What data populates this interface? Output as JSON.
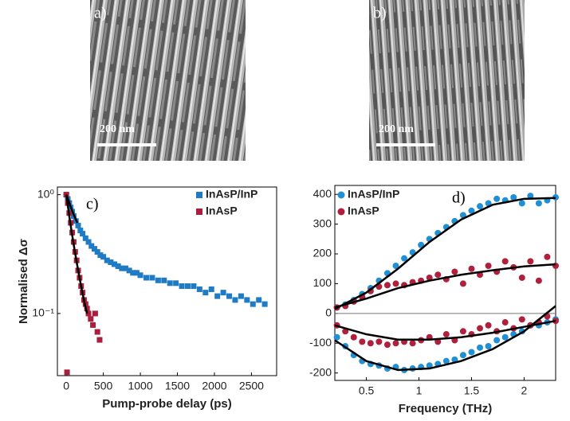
{
  "images": [
    {
      "label": "a)",
      "scale": "200 nm"
    },
    {
      "label": "b)",
      "scale": "200 nm"
    }
  ],
  "chart_data": [
    {
      "type": "scatter",
      "annotation": "c)",
      "xlabel": "Pump-probe delay (ps)",
      "ylabel": "Normalised Δσ",
      "xlim": [
        -120,
        2840
      ],
      "xticks": [
        0,
        500,
        1000,
        1500,
        2000,
        2500
      ],
      "ylim": [
        0.03,
        1.16
      ],
      "ylog": true,
      "yticks": [
        {
          "value": 1,
          "label": "10⁰"
        },
        {
          "value": 0.1,
          "label": "10⁻¹"
        }
      ],
      "legend": "upper right",
      "series": [
        {
          "name": "InAsP/InP",
          "color": "#1f7bc4",
          "marker": "square",
          "x": [
            0,
            20,
            40,
            60,
            80,
            100,
            130,
            160,
            190,
            220,
            260,
            300,
            340,
            380,
            420,
            460,
            500,
            550,
            600,
            650,
            700,
            750,
            800,
            850,
            900,
            950,
            1000,
            1080,
            1160,
            1240,
            1320,
            1400,
            1480,
            1560,
            1640,
            1720,
            1800,
            1880,
            1960,
            2040,
            2120,
            2200,
            2280,
            2360,
            2440,
            2520,
            2600,
            2680
          ],
          "values": [
            1.0,
            0.92,
            0.85,
            0.78,
            0.72,
            0.66,
            0.6,
            0.55,
            0.5,
            0.47,
            0.43,
            0.4,
            0.37,
            0.35,
            0.33,
            0.31,
            0.3,
            0.28,
            0.27,
            0.26,
            0.25,
            0.24,
            0.24,
            0.23,
            0.22,
            0.22,
            0.21,
            0.2,
            0.2,
            0.19,
            0.19,
            0.18,
            0.18,
            0.17,
            0.17,
            0.17,
            0.16,
            0.15,
            0.16,
            0.14,
            0.15,
            0.14,
            0.13,
            0.14,
            0.13,
            0.12,
            0.13,
            0.12
          ]
        },
        {
          "name": "InAsP",
          "color": "#a8203c",
          "marker": "square",
          "x": [
            0,
            20,
            40,
            60,
            80,
            100,
            120,
            140,
            160,
            180,
            200,
            220,
            240,
            260,
            280,
            300,
            330,
            360,
            390,
            420,
            450,
            10
          ],
          "values": [
            1.0,
            0.85,
            0.7,
            0.58,
            0.48,
            0.4,
            0.33,
            0.28,
            0.23,
            0.2,
            0.17,
            0.15,
            0.13,
            0.12,
            0.11,
            0.1,
            0.09,
            0.08,
            0.1,
            0.07,
            0.06,
            0.032
          ]
        },
        {
          "style": "line",
          "color": "#000000",
          "x": [
            0,
            50,
            100,
            150
          ],
          "values": [
            1,
            0.82,
            0.68,
            0.58
          ]
        },
        {
          "style": "line",
          "color": "#000000",
          "x": [
            0,
            50,
            100,
            150,
            200,
            250,
            280
          ],
          "values": [
            1,
            0.6,
            0.38,
            0.25,
            0.17,
            0.12,
            0.1
          ]
        }
      ]
    },
    {
      "type": "scatter",
      "annotation": "d)",
      "xlabel": "Frequency (THz)",
      "xlim": [
        0.2,
        2.3
      ],
      "xticks": [
        0.5,
        1,
        1.5,
        2
      ],
      "ylim": [
        -225,
        430
      ],
      "yticks": [
        -200,
        -100,
        0,
        100,
        200,
        300,
        400
      ],
      "zero_line": true,
      "legend": "upper left",
      "series": [
        {
          "name": "InAsP/InP",
          "color": "#1f8fd6",
          "marker": "circle",
          "x": [
            0.22,
            0.3,
            0.38,
            0.46,
            0.54,
            0.62,
            0.7,
            0.78,
            0.86,
            0.94,
            1.02,
            1.1,
            1.18,
            1.26,
            1.34,
            1.42,
            1.5,
            1.58,
            1.66,
            1.74,
            1.82,
            1.9,
            1.98,
            2.06,
            2.14,
            2.22,
            2.3
          ],
          "values": [
            20,
            30,
            45,
            65,
            85,
            110,
            135,
            160,
            185,
            205,
            230,
            250,
            270,
            290,
            310,
            330,
            345,
            360,
            370,
            385,
            380,
            390,
            370,
            395,
            370,
            380,
            390
          ]
        },
        {
          "name": "InAsP",
          "color": "#b0203c",
          "marker": "circle",
          "x": [
            0.22,
            0.3,
            0.38,
            0.46,
            0.54,
            0.62,
            0.7,
            0.78,
            0.86,
            0.94,
            1.02,
            1.1,
            1.18,
            1.26,
            1.34,
            1.42,
            1.5,
            1.58,
            1.66,
            1.74,
            1.82,
            1.9,
            1.98,
            2.06,
            2.14,
            2.22,
            2.3
          ],
          "values": [
            20,
            25,
            40,
            55,
            75,
            90,
            95,
            100,
            95,
            105,
            110,
            120,
            130,
            115,
            140,
            100,
            150,
            130,
            160,
            140,
            175,
            155,
            120,
            175,
            110,
            190,
            160
          ]
        },
        {
          "color": "#1f8fd6",
          "marker": "circle",
          "x": [
            0.22,
            0.3,
            0.38,
            0.46,
            0.54,
            0.62,
            0.7,
            0.78,
            0.86,
            0.94,
            1.02,
            1.1,
            1.18,
            1.26,
            1.34,
            1.42,
            1.5,
            1.58,
            1.66,
            1.74,
            1.82,
            1.9,
            1.98,
            2.06,
            2.14,
            2.22,
            2.3
          ],
          "values": [
            -80,
            -110,
            -140,
            -160,
            -170,
            -175,
            -185,
            -180,
            -190,
            -185,
            -180,
            -175,
            -170,
            -160,
            -155,
            -140,
            -130,
            -115,
            -110,
            -90,
            -80,
            -70,
            -60,
            -40,
            -40,
            -30,
            -20
          ]
        },
        {
          "color": "#b0203c",
          "marker": "circle",
          "x": [
            0.22,
            0.3,
            0.38,
            0.46,
            0.54,
            0.62,
            0.7,
            0.78,
            0.86,
            0.94,
            1.02,
            1.1,
            1.18,
            1.26,
            1.34,
            1.42,
            1.5,
            1.58,
            1.66,
            1.74,
            1.82,
            1.9,
            1.98,
            2.06,
            2.14,
            2.22,
            2.3
          ],
          "values": [
            -40,
            -60,
            -80,
            -95,
            -100,
            -95,
            -105,
            -100,
            -95,
            -100,
            -90,
            -80,
            -95,
            -70,
            -90,
            -60,
            -70,
            -50,
            -40,
            -60,
            -30,
            -50,
            -20,
            -40,
            -30,
            -10,
            -25
          ]
        },
        {
          "style": "line",
          "color": "#000000",
          "x": [
            0.2,
            0.5,
            0.8,
            1.1,
            1.4,
            1.7,
            2.0,
            2.3
          ],
          "values": [
            15,
            70,
            150,
            240,
            315,
            365,
            385,
            388
          ]
        },
        {
          "style": "line",
          "color": "#000000",
          "x": [
            0.2,
            0.5,
            0.8,
            1.1,
            1.4,
            1.7,
            2.0,
            2.3
          ],
          "values": [
            20,
            50,
            85,
            110,
            130,
            145,
            158,
            165
          ]
        },
        {
          "style": "line",
          "color": "#000000",
          "x": [
            0.2,
            0.5,
            0.8,
            1.1,
            1.4,
            1.7,
            2.0,
            2.3
          ],
          "values": [
            -90,
            -160,
            -190,
            -185,
            -160,
            -120,
            -60,
            25
          ]
        },
        {
          "style": "line",
          "color": "#000000",
          "x": [
            0.2,
            0.5,
            0.8,
            1.1,
            1.4,
            1.7,
            2.0,
            2.3
          ],
          "values": [
            -40,
            -70,
            -88,
            -88,
            -80,
            -65,
            -45,
            -25
          ]
        }
      ]
    }
  ]
}
